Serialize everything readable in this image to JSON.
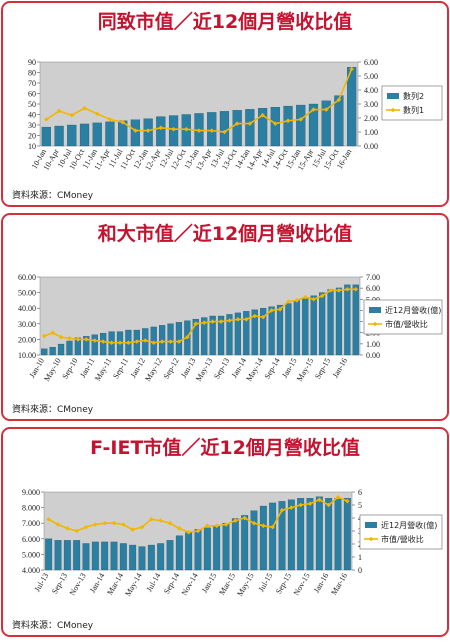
{
  "chart_data": [
    {
      "type": "bar_line",
      "title": "同致市值／近12個月營收比值",
      "source": "資料來源：CMoney",
      "categories": [
        "10-Jan",
        "10-Apr",
        "10-Jul",
        "10-Oct",
        "11-Jan",
        "11-Apr",
        "11-Jul",
        "11-Oct",
        "12-Jan",
        "12-Apr",
        "12-Jul",
        "12-Oct",
        "13-Jan",
        "13-Apr",
        "13-Jul",
        "13-Oct",
        "14-Jan",
        "14-Apr",
        "14-Jul",
        "14-Oct",
        "15-Jan",
        "15-Apr",
        "15-Jul",
        "15-Oct",
        "16-Jan"
      ],
      "series": [
        {
          "name": "數列2",
          "type": "bar",
          "color": "#2b7fa3",
          "values": [
            28,
            29,
            30,
            31,
            32,
            33,
            34,
            35,
            36,
            38,
            39,
            40,
            41,
            42,
            43,
            44,
            45,
            46,
            47,
            48,
            49,
            50,
            53,
            58,
            85
          ]
        },
        {
          "name": "數列1",
          "type": "line",
          "axis": "y2",
          "color": "#f2b600",
          "values": [
            1.9,
            2.5,
            2.2,
            2.7,
            2.3,
            1.9,
            1.7,
            1.1,
            1.1,
            1.3,
            1.2,
            1.2,
            1.1,
            1.1,
            1.0,
            1.6,
            1.6,
            2.2,
            1.6,
            1.8,
            1.9,
            2.6,
            2.6,
            3.3,
            5.5
          ]
        }
      ],
      "ylim": [
        10,
        90
      ],
      "yticks": [
        10,
        20,
        30,
        40,
        50,
        60,
        70,
        80,
        90
      ],
      "y2lim": [
        0,
        6
      ],
      "y2ticks": [
        {
          "value": 0,
          "label": "0.00"
        },
        {
          "value": 1,
          "label": "1.00"
        },
        {
          "value": 2,
          "label": "2.00"
        },
        {
          "value": 3,
          "label": "3.00"
        },
        {
          "value": 4,
          "label": "4.00"
        },
        {
          "value": 5,
          "label": "5.00"
        },
        {
          "value": 6,
          "label": "6.00"
        }
      ],
      "legend": "right"
    },
    {
      "type": "bar_line",
      "title": "和大市值／近12個月營收比值",
      "source": "資料來源：CMoney",
      "categories": [
        "Jan-10",
        null,
        "May-10",
        null,
        "Sep-10",
        null,
        "Jan-11",
        null,
        "May-11",
        null,
        "Sep-11",
        null,
        "Jan-12",
        null,
        "May-12",
        null,
        "Sep-12",
        null,
        "Jan-13",
        null,
        "May-13",
        null,
        "Sep-13",
        null,
        "Jan-14",
        null,
        "May-14",
        null,
        "Sep-14",
        null,
        "Jan-15",
        null,
        "May-15",
        null,
        "Sep-15",
        null,
        "Jan-16",
        null
      ],
      "series": [
        {
          "name": "近12月營收(億)",
          "type": "bar",
          "color": "#2b7fa3",
          "values": [
            14,
            15,
            17,
            19,
            21,
            22,
            23,
            24,
            25,
            25,
            26,
            26,
            27,
            28,
            29,
            30,
            31,
            32,
            33,
            34,
            35,
            35,
            36,
            37,
            38,
            39,
            40,
            41,
            42,
            43,
            45,
            46,
            48,
            50,
            52,
            53,
            55,
            55
          ]
        },
        {
          "name": "市值/營收比",
          "type": "line",
          "axis": "y2",
          "color": "#f2b600",
          "values": [
            1.7,
            2.0,
            1.6,
            1.5,
            1.4,
            1.4,
            1.3,
            1.2,
            1.1,
            1.1,
            1.1,
            1.2,
            1.3,
            1.1,
            1.2,
            1.2,
            1.2,
            1.6,
            2.8,
            2.9,
            3.0,
            3.0,
            3.1,
            3.2,
            3.2,
            3.5,
            3.4,
            4.0,
            4.1,
            4.8,
            4.9,
            5.2,
            5.0,
            5.3,
            5.8,
            5.8,
            5.9,
            5.9
          ]
        }
      ],
      "ylim": [
        10,
        60
      ],
      "yticks": [
        {
          "value": 10,
          "label": "10.00"
        },
        {
          "value": 20,
          "label": "20.00"
        },
        {
          "value": 30,
          "label": "30.00"
        },
        {
          "value": 40,
          "label": "40.00"
        },
        {
          "value": 50,
          "label": "50.00"
        },
        {
          "value": 60,
          "label": "60.00"
        }
      ],
      "y2lim": [
        0,
        7
      ],
      "y2ticks": [
        {
          "value": 0,
          "label": "0.00"
        },
        {
          "value": 1,
          "label": "1.00"
        },
        {
          "value": 2,
          "label": "2.00"
        },
        {
          "value": 3,
          "label": "3.00"
        },
        {
          "value": 4,
          "label": "4.00"
        },
        {
          "value": 5,
          "label": "5.00"
        },
        {
          "value": 6,
          "label": "6.00"
        },
        {
          "value": 7,
          "label": "7.00"
        }
      ],
      "legend": "right"
    },
    {
      "type": "bar_line",
      "title": "F-IET市值／近12個月營收比值",
      "source": "資料來源：CMoney",
      "categories": [
        "Jul-13",
        null,
        "Sep-13",
        null,
        "Nov-13",
        null,
        "Jan-14",
        null,
        "Mar-14",
        null,
        "May-14",
        null,
        "Jul-14",
        null,
        "Sep-14",
        null,
        "Nov-14",
        null,
        "Jan-15",
        null,
        "Mar-15",
        null,
        "May-15",
        null,
        "Jul-15",
        null,
        "Sep-15",
        null,
        "Nov-15",
        null,
        "Jan-16",
        null,
        "Mar-16"
      ],
      "series": [
        {
          "name": "近12月營收(億)",
          "type": "bar",
          "color": "#2b7fa3",
          "values": [
            6.0,
            5.9,
            5.9,
            5.9,
            5.7,
            5.8,
            5.8,
            5.8,
            5.7,
            5.6,
            5.5,
            5.6,
            5.7,
            5.9,
            6.2,
            6.4,
            6.6,
            6.7,
            6.8,
            7.0,
            7.3,
            7.5,
            7.8,
            8.1,
            8.3,
            8.4,
            8.5,
            8.6,
            8.6,
            8.7,
            8.6,
            8.6,
            8.6
          ]
        },
        {
          "name": "市值/營收比",
          "type": "line",
          "axis": "y2",
          "color": "#f2b600",
          "values": [
            3.9,
            3.5,
            3.2,
            3.0,
            3.3,
            3.5,
            3.6,
            3.6,
            3.5,
            3.1,
            3.3,
            3.9,
            3.8,
            3.6,
            3.2,
            2.9,
            3.0,
            3.4,
            3.4,
            3.5,
            3.8,
            4.0,
            3.6,
            3.4,
            3.3,
            4.6,
            4.8,
            5.0,
            5.1,
            5.4,
            5.0,
            5.6,
            5.3
          ]
        }
      ],
      "ylim": [
        4,
        9
      ],
      "yticks": [
        {
          "value": 4,
          "label": "4.000"
        },
        {
          "value": 5,
          "label": "5.000"
        },
        {
          "value": 6,
          "label": "6.000"
        },
        {
          "value": 7,
          "label": "7.000"
        },
        {
          "value": 8,
          "label": "8.000"
        },
        {
          "value": 9,
          "label": "9.000"
        }
      ],
      "y2lim": [
        0,
        6
      ],
      "y2ticks": [
        0,
        1,
        2,
        3,
        4,
        5,
        6
      ],
      "legend": "right"
    }
  ]
}
